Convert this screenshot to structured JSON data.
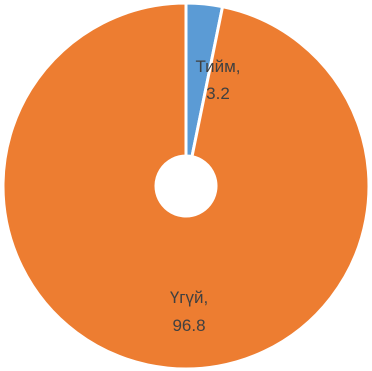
{
  "chart_data": {
    "type": "pie",
    "donut": true,
    "title": "",
    "legend": "none",
    "slices": [
      {
        "label": "Тийм",
        "value": 3.2,
        "color": "#5B9BD5",
        "label_text": "Тийм,",
        "value_text": "3.2"
      },
      {
        "label": "Үгүй",
        "value": 96.8,
        "color": "#ED7D31",
        "label_text": "Үгүй,",
        "value_text": "96.8"
      }
    ]
  }
}
